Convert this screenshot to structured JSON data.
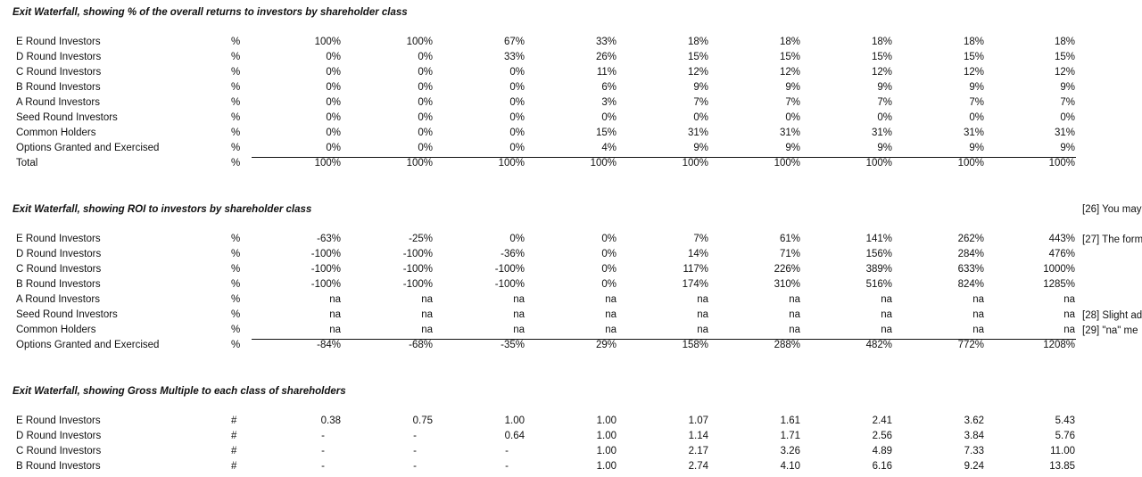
{
  "sections": [
    {
      "title": "Exit Waterfall, showing % of the overall returns to investors by shareholder class",
      "rows": [
        {
          "label": "E Round Investors",
          "unit": "%",
          "values": [
            "100%",
            "100%",
            "67%",
            "33%",
            "18%",
            "18%",
            "18%",
            "18%",
            "18%"
          ]
        },
        {
          "label": "D Round Investors",
          "unit": "%",
          "values": [
            "0%",
            "0%",
            "33%",
            "26%",
            "15%",
            "15%",
            "15%",
            "15%",
            "15%"
          ]
        },
        {
          "label": "C Round Investors",
          "unit": "%",
          "values": [
            "0%",
            "0%",
            "0%",
            "11%",
            "12%",
            "12%",
            "12%",
            "12%",
            "12%"
          ]
        },
        {
          "label": "B Round Investors",
          "unit": "%",
          "values": [
            "0%",
            "0%",
            "0%",
            "6%",
            "9%",
            "9%",
            "9%",
            "9%",
            "9%"
          ]
        },
        {
          "label": "A Round Investors",
          "unit": "%",
          "values": [
            "0%",
            "0%",
            "0%",
            "3%",
            "7%",
            "7%",
            "7%",
            "7%",
            "7%"
          ]
        },
        {
          "label": "Seed Round Investors",
          "unit": "%",
          "values": [
            "0%",
            "0%",
            "0%",
            "0%",
            "0%",
            "0%",
            "0%",
            "0%",
            "0%"
          ]
        },
        {
          "label": "Common Holders",
          "unit": "%",
          "values": [
            "0%",
            "0%",
            "0%",
            "15%",
            "31%",
            "31%",
            "31%",
            "31%",
            "31%"
          ]
        },
        {
          "label": "Options Granted and Exercised",
          "unit": "%",
          "values": [
            "0%",
            "0%",
            "0%",
            "4%",
            "9%",
            "9%",
            "9%",
            "9%",
            "9%"
          ]
        },
        {
          "label": "Total",
          "unit": "%",
          "values": [
            "100%",
            "100%",
            "100%",
            "100%",
            "100%",
            "100%",
            "100%",
            "100%",
            "100%"
          ]
        }
      ]
    },
    {
      "title": "Exit Waterfall, showing ROI to investors by shareholder class",
      "rows": [
        {
          "label": "E Round Investors",
          "unit": "%",
          "values": [
            "-63%",
            "-25%",
            "0%",
            "0%",
            "7%",
            "61%",
            "141%",
            "262%",
            "443%"
          ]
        },
        {
          "label": "D Round Investors",
          "unit": "%",
          "values": [
            "-100%",
            "-100%",
            "-36%",
            "0%",
            "14%",
            "71%",
            "156%",
            "284%",
            "476%"
          ]
        },
        {
          "label": "C Round Investors",
          "unit": "%",
          "values": [
            "-100%",
            "-100%",
            "-100%",
            "0%",
            "117%",
            "226%",
            "389%",
            "633%",
            "1000%"
          ]
        },
        {
          "label": "B Round Investors",
          "unit": "%",
          "values": [
            "-100%",
            "-100%",
            "-100%",
            "0%",
            "174%",
            "310%",
            "516%",
            "824%",
            "1285%"
          ]
        },
        {
          "label": "A Round Investors",
          "unit": "%",
          "values": [
            "na",
            "na",
            "na",
            "na",
            "na",
            "na",
            "na",
            "na",
            "na"
          ]
        },
        {
          "label": "Seed Round Investors",
          "unit": "%",
          "values": [
            "na",
            "na",
            "na",
            "na",
            "na",
            "na",
            "na",
            "na",
            "na"
          ]
        },
        {
          "label": "Common Holders",
          "unit": "%",
          "values": [
            "na",
            "na",
            "na",
            "na",
            "na",
            "na",
            "na",
            "na",
            "na"
          ]
        },
        {
          "label": "Options Granted and Exercised",
          "unit": "%",
          "values": [
            "-84%",
            "-68%",
            "-35%",
            "29%",
            "158%",
            "288%",
            "482%",
            "772%",
            "1208%"
          ]
        }
      ],
      "notes": {
        "n26": "[26] You may",
        "n27": "[27] The form",
        "n28": "[28] Slight ad",
        "n29": "[29] \"na\" me"
      }
    },
    {
      "title": "Exit Waterfall, showing Gross Multiple to each class of shareholders",
      "rows": [
        {
          "label": "E Round Investors",
          "unit": "#",
          "values": [
            "0.38",
            "0.75",
            "1.00",
            "1.00",
            "1.07",
            "1.61",
            "2.41",
            "3.62",
            "5.43"
          ]
        },
        {
          "label": "D Round Investors",
          "unit": "#",
          "values": [
            "-",
            "-",
            "0.64",
            "1.00",
            "1.14",
            "1.71",
            "2.56",
            "3.84",
            "5.76"
          ]
        },
        {
          "label": "C Round Investors",
          "unit": "#",
          "values": [
            "-",
            "-",
            "-",
            "1.00",
            "2.17",
            "3.26",
            "4.89",
            "7.33",
            "11.00"
          ]
        },
        {
          "label": "B Round Investors",
          "unit": "#",
          "values": [
            "-",
            "-",
            "-",
            "1.00",
            "2.74",
            "4.10",
            "6.16",
            "9.24",
            "13.85"
          ]
        }
      ]
    }
  ]
}
